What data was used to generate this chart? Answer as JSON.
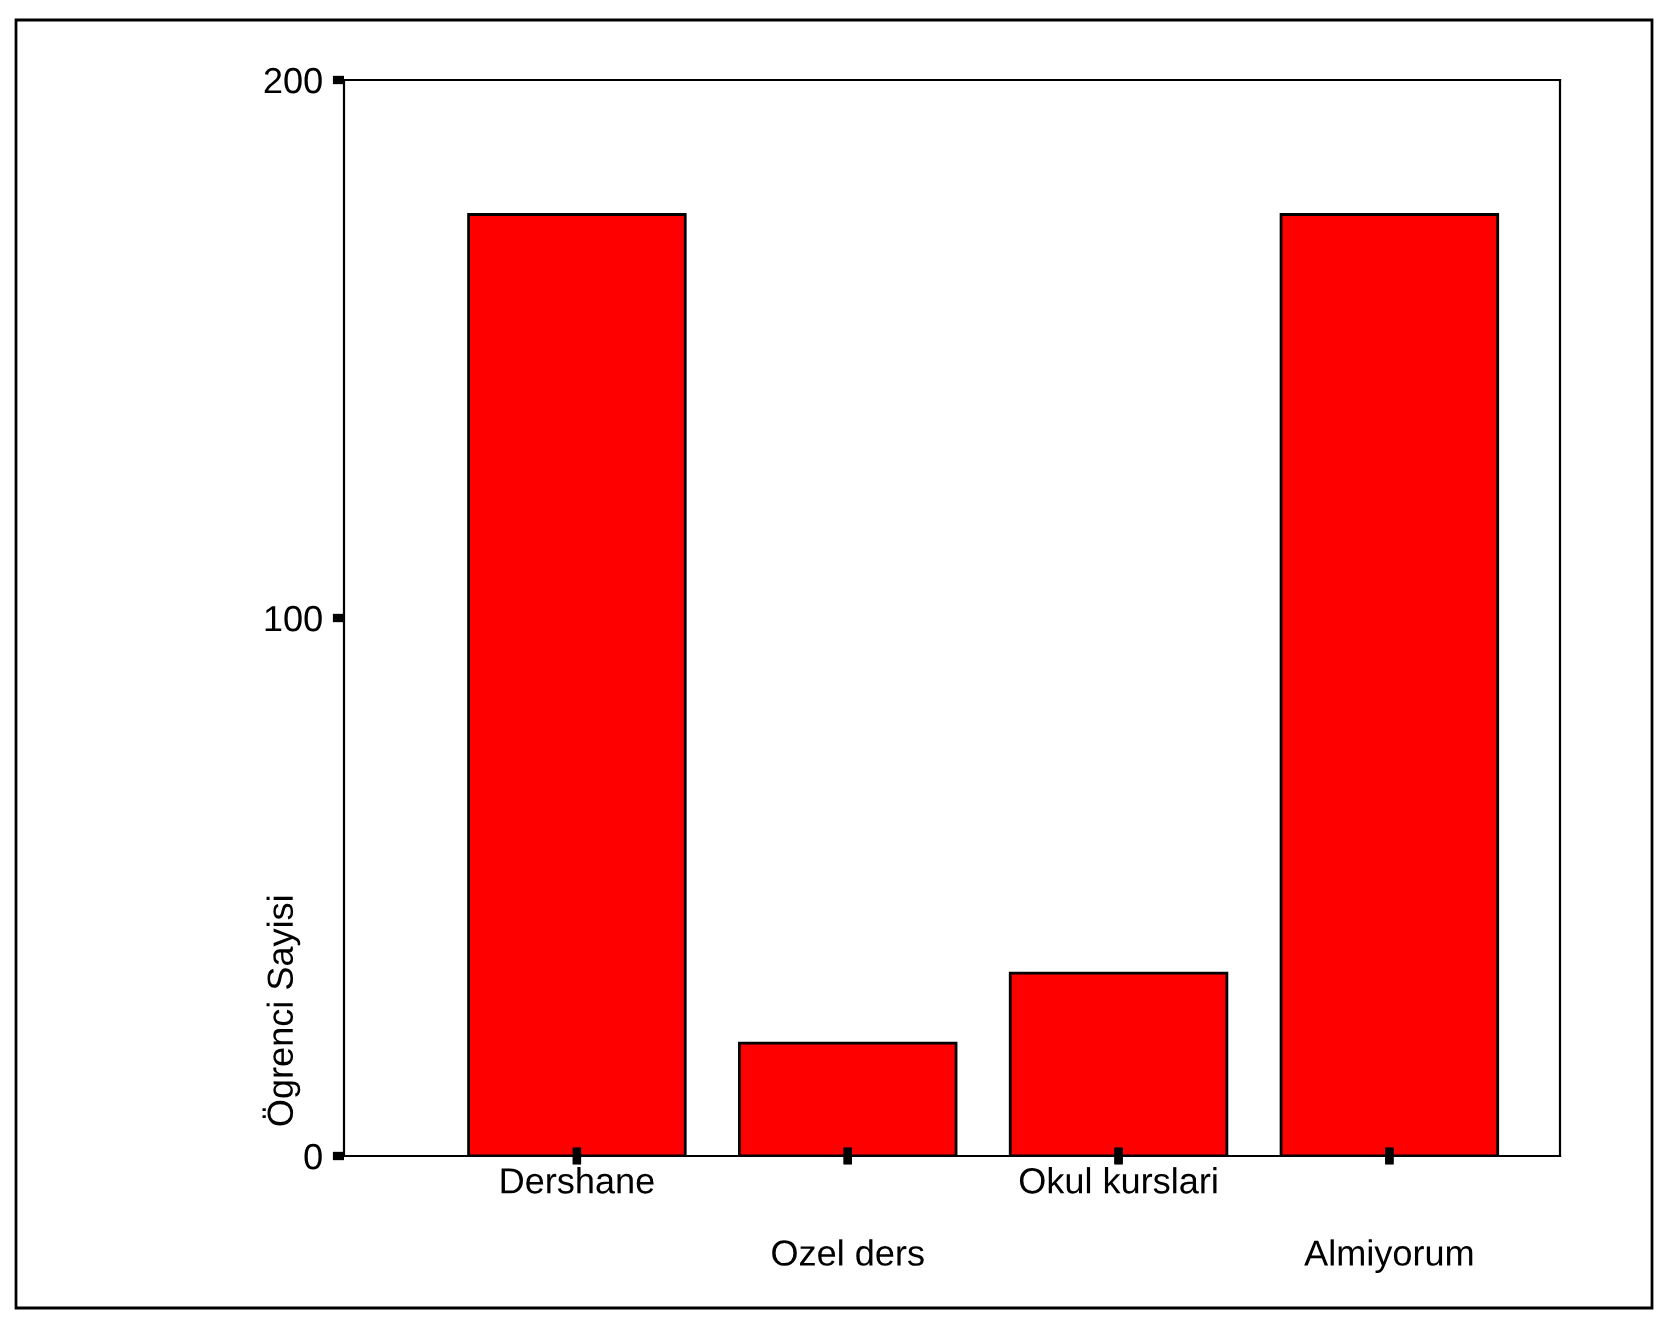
{
  "chart_data": {
    "type": "bar",
    "ylabel": "Ögrenci Sayisi",
    "categories": [
      "Dershane",
      "Ozel ders",
      "Okul kurslari",
      "Almiyorum"
    ],
    "values": [
      175,
      21,
      34,
      175
    ],
    "color": "#ff0000",
    "ylim": [
      0,
      200
    ],
    "yticks": [
      0,
      100,
      200
    ],
    "grid": false,
    "legend": false
  }
}
